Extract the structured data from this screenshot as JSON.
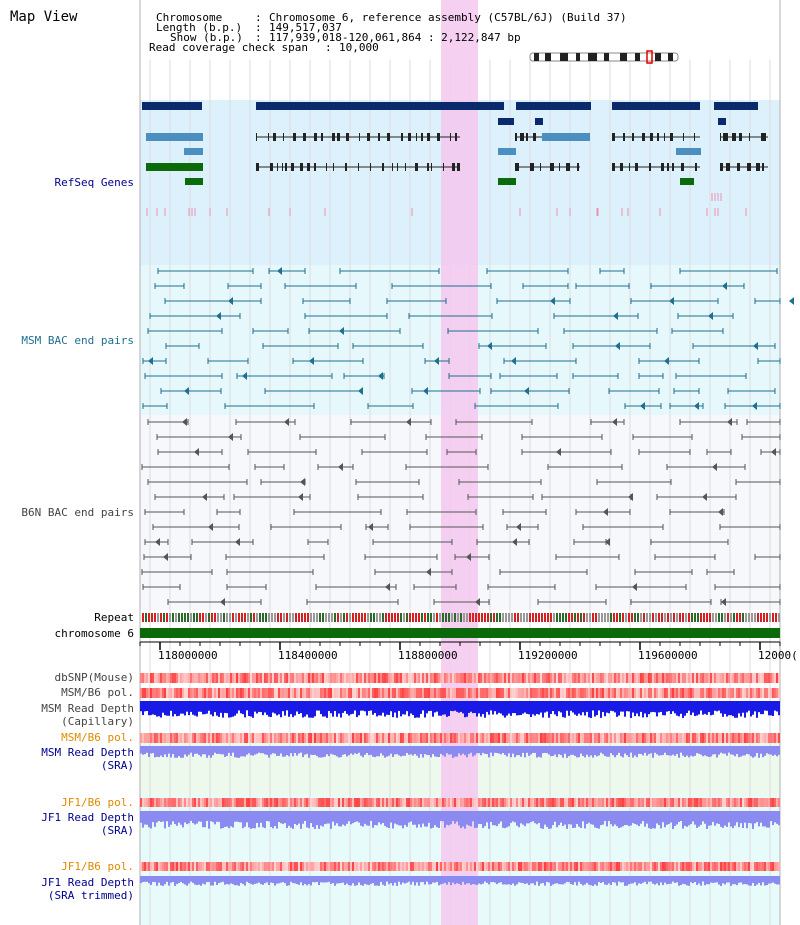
{
  "panel_title": "Map View",
  "info": {
    "chromosome_key": "Chromosome",
    "chromosome_value": "Chromosome 6, reference assembly (C57BL/6J) (Build 37)",
    "length_key": "Length (b.p.)",
    "length_value": "149,517,037",
    "show_key": "Show (b.p.)",
    "show_value": "117,939,018-120,061,864 : 2,122,847 bp",
    "coverage_key": "Read coverage check span",
    "coverage_value": "10,000",
    "separator": ":"
  },
  "track_labels": {
    "refseq": "RefSeq Genes",
    "msm_bac": "MSM BAC end pairs",
    "b6n_bac": "B6N BAC end pairs",
    "repeat": "Repeat",
    "chromosome": "chromosome 6",
    "dbsnp": "dbSNP(Mouse)",
    "msm_b6_pol_1": "MSM/B6 pol.",
    "msm_read_depth_cap_1": "MSM Read Depth",
    "msm_read_depth_cap_2": "(Capillary)",
    "msm_b6_pol_2": "MSM/B6 pol.",
    "msm_read_depth_sra_1": "MSM Read Depth",
    "msm_read_depth_sra_2": "(SRA)",
    "jf1_b6_pol_1": "JF1/B6 pol.",
    "jf1_read_depth_sra_1": "JF1 Read Depth",
    "jf1_read_depth_sra_2": "(SRA)",
    "jf1_b6_pol_2": "JF1/B6 pol.",
    "jf1_read_depth_trim_1": "JF1 Read Depth",
    "jf1_read_depth_trim_2": "(SRA trimmed)"
  },
  "axis": {
    "tick_labels": [
      "118000000",
      "118400000",
      "118800000",
      "119200000",
      "119600000",
      "12000("
    ]
  },
  "colors": {
    "refseq_dark": "#0b2a6b",
    "refseq_mid": "#4a8fbf",
    "refseq_green": "#0b6b0b",
    "refseq_bg": "#dcf1fb",
    "msm_bac": "#1f6f8f",
    "msm_bac_bg": "#e6f8fb",
    "b6n_bac": "#555555",
    "b6n_bac_bg": "#f6f8fb",
    "highlight": "#f5c8ef",
    "chromosome_bar": "#0a6a0a",
    "label_blue": "#00008b",
    "label_teal": "#1f6f8f",
    "label_gray": "#444444",
    "label_orange": "#e08a00",
    "depth_blue": "#1a1ae6",
    "depth_lavender": "#8a8af0",
    "pol_red": "#ff4040",
    "pol_pink": "#ffc8c8"
  },
  "icons": {
    "ideogram": "chromosome-ideogram-icon"
  }
}
